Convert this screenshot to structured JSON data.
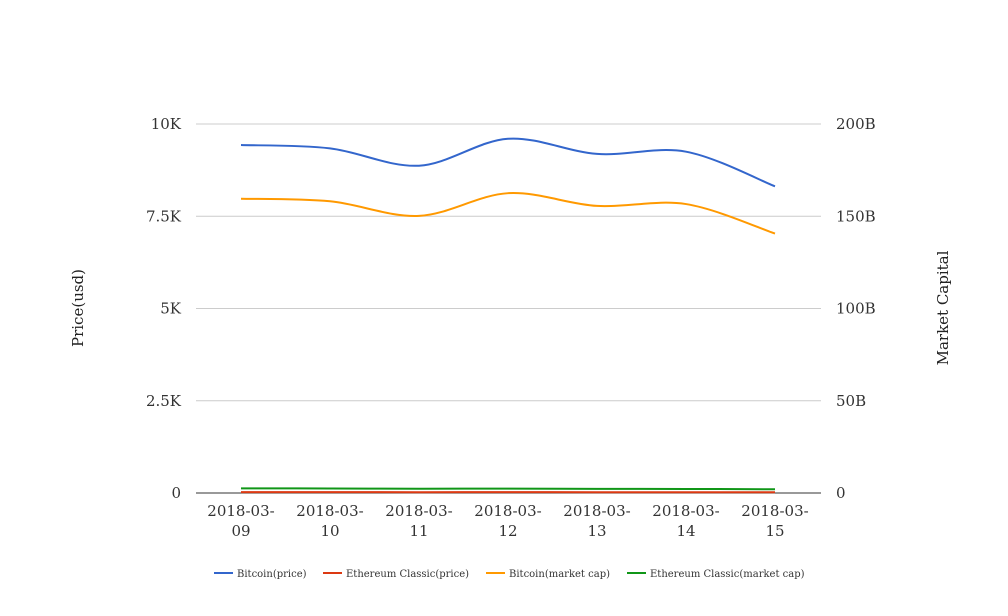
{
  "chart_data": {
    "type": "line",
    "title": "",
    "xlabel": "",
    "x": [
      "2018-03-09",
      "2018-03-10",
      "2018-03-11",
      "2018-03-12",
      "2018-03-13",
      "2018-03-14",
      "2018-03-15"
    ],
    "x_tick_lines": [
      [
        "2018-03-",
        "09"
      ],
      [
        "2018-03-",
        "10"
      ],
      [
        "2018-03-",
        "11"
      ],
      [
        "2018-03-",
        "12"
      ],
      [
        "2018-03-",
        "13"
      ],
      [
        "2018-03-",
        "14"
      ],
      [
        "2018-03-",
        "15"
      ]
    ],
    "y_left": {
      "label": "Price(usd)",
      "ylim": [
        0,
        10000
      ],
      "ticks": [
        0,
        2500,
        5000,
        7500,
        10000
      ],
      "tick_labels": [
        "0",
        "2.5K",
        "5K",
        "7.5K",
        "10K"
      ]
    },
    "y_right": {
      "label": "Market Capital",
      "ylim": [
        0,
        200000000000
      ],
      "ticks": [
        0,
        50000000000,
        100000000000,
        150000000000,
        200000000000
      ],
      "tick_labels": [
        "0",
        "50B",
        "100B",
        "150B",
        "200B"
      ]
    },
    "grid": true,
    "legend_position": "bottom",
    "series": [
      {
        "name": "Bitcoin(price)",
        "axis": "left",
        "color": "#3366cc",
        "values": [
          9430,
          9340,
          8870,
          9600,
          9190,
          9250,
          8310
        ]
      },
      {
        "name": "Ethereum Classic(price)",
        "axis": "left",
        "color": "#dc3912",
        "values": [
          24,
          23,
          22,
          23,
          22,
          21,
          20
        ]
      },
      {
        "name": "Bitcoin(market cap)",
        "axis": "right",
        "color": "#ff9900",
        "values": [
          159500000000,
          158100000000,
          150200000000,
          162500000000,
          155600000000,
          156600000000,
          140600000000
        ]
      },
      {
        "name": "Ethereum Classic(market cap)",
        "axis": "right",
        "color": "#109618",
        "values": [
          2500000000,
          2450000000,
          2300000000,
          2400000000,
          2250000000,
          2200000000,
          2000000000
        ]
      }
    ]
  }
}
